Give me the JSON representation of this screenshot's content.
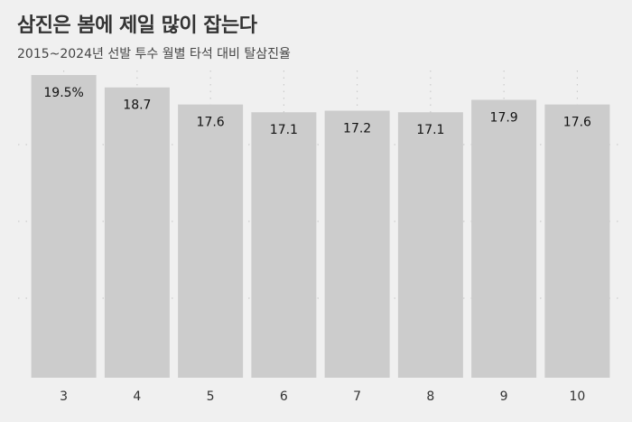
{
  "title": "삼진은 봄에 제일 많이 잡는다",
  "subtitle": "2015~2024년 선발 투수 월별 타석 대비 탈삼진율",
  "colors": {
    "background": "#f0f0f0",
    "bar": "#cccccc",
    "grid": "#c4c4c4",
    "text": "#333333"
  },
  "chart_data": {
    "type": "bar",
    "categories": [
      "3",
      "4",
      "5",
      "6",
      "7",
      "8",
      "9",
      "10"
    ],
    "values": [
      19.5,
      18.7,
      17.6,
      17.1,
      17.2,
      17.1,
      17.9,
      17.6
    ],
    "labels": [
      "19.5%",
      "18.7",
      "17.6",
      "17.1",
      "17.2",
      "17.1",
      "17.9",
      "17.6"
    ],
    "title": "삼진은 봄에 제일 많이 잡는다",
    "subtitle": "2015~2024년 선발 투수 월별 타석 대비 탈삼진율",
    "ylim": [
      0,
      19.5
    ],
    "grid": true,
    "legend": "none"
  }
}
